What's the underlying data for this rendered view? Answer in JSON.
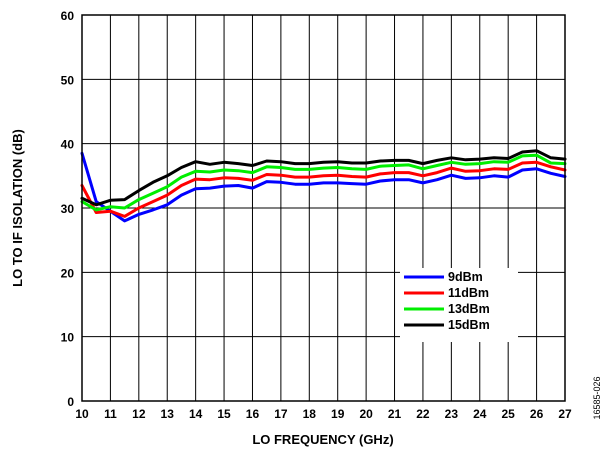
{
  "chart_data": {
    "type": "line",
    "xlabel": "LO FREQUENCY (GHz)",
    "ylabel": "LO TO IF ISOLATION (dB)",
    "xlim": [
      10,
      27
    ],
    "ylim": [
      0,
      60
    ],
    "x_ticks": [
      "10",
      "11",
      "12",
      "13",
      "14",
      "15",
      "16",
      "17",
      "18",
      "19",
      "20",
      "21",
      "22",
      "23",
      "24",
      "25",
      "26",
      "27"
    ],
    "y_ticks": [
      "0",
      "10",
      "20",
      "30",
      "40",
      "50",
      "60"
    ],
    "grid": true,
    "legend_position": "lower-right",
    "x": [
      10.0,
      10.5,
      11.0,
      11.5,
      12.0,
      12.5,
      13.0,
      13.5,
      14.0,
      14.5,
      15.0,
      15.5,
      16.0,
      16.5,
      17.0,
      17.5,
      18.0,
      18.5,
      19.0,
      19.5,
      20.0,
      20.5,
      21.0,
      21.5,
      22.0,
      22.5,
      23.0,
      23.5,
      24.0,
      24.5,
      25.0,
      25.5,
      26.0,
      26.5,
      27.0
    ],
    "series": [
      {
        "name": "9dBm",
        "color": "#0000ff",
        "values": [
          38.5,
          31.0,
          29.5,
          28.0,
          29.0,
          29.7,
          30.5,
          32.0,
          33.0,
          33.1,
          33.4,
          33.5,
          33.1,
          34.1,
          34.0,
          33.7,
          33.7,
          33.9,
          33.9,
          33.8,
          33.7,
          34.2,
          34.4,
          34.4,
          33.9,
          34.4,
          35.1,
          34.6,
          34.7,
          35.0,
          34.8,
          35.9,
          36.1,
          35.4,
          34.9
        ]
      },
      {
        "name": "11dBm",
        "color": "#ff0000",
        "values": [
          33.5,
          29.3,
          29.5,
          28.7,
          30.0,
          31.0,
          32.0,
          33.5,
          34.5,
          34.4,
          34.7,
          34.6,
          34.3,
          35.2,
          35.1,
          34.8,
          34.8,
          35.0,
          35.1,
          34.9,
          34.8,
          35.3,
          35.5,
          35.5,
          35.0,
          35.5,
          36.2,
          35.7,
          35.8,
          36.1,
          36.0,
          37.0,
          37.1,
          36.4,
          35.9
        ]
      },
      {
        "name": "13dBm",
        "color": "#00ee00",
        "values": [
          31.0,
          29.7,
          30.2,
          30.0,
          31.3,
          32.3,
          33.3,
          34.8,
          35.7,
          35.6,
          35.9,
          35.8,
          35.5,
          36.4,
          36.3,
          36.0,
          36.0,
          36.2,
          36.3,
          36.1,
          36.0,
          36.5,
          36.6,
          36.7,
          36.1,
          36.6,
          37.1,
          36.8,
          36.9,
          37.2,
          37.1,
          38.1,
          38.2,
          37.0,
          36.9
        ]
      },
      {
        "name": "15dBm",
        "color": "#000000",
        "values": [
          31.5,
          30.5,
          31.2,
          31.3,
          32.7,
          34.0,
          35.0,
          36.3,
          37.2,
          36.8,
          37.1,
          36.9,
          36.6,
          37.3,
          37.2,
          36.9,
          36.9,
          37.1,
          37.2,
          37.0,
          37.0,
          37.3,
          37.4,
          37.4,
          36.9,
          37.4,
          37.8,
          37.5,
          37.6,
          37.8,
          37.7,
          38.7,
          38.9,
          37.8,
          37.6
        ]
      }
    ],
    "side_note": "16585-026"
  }
}
